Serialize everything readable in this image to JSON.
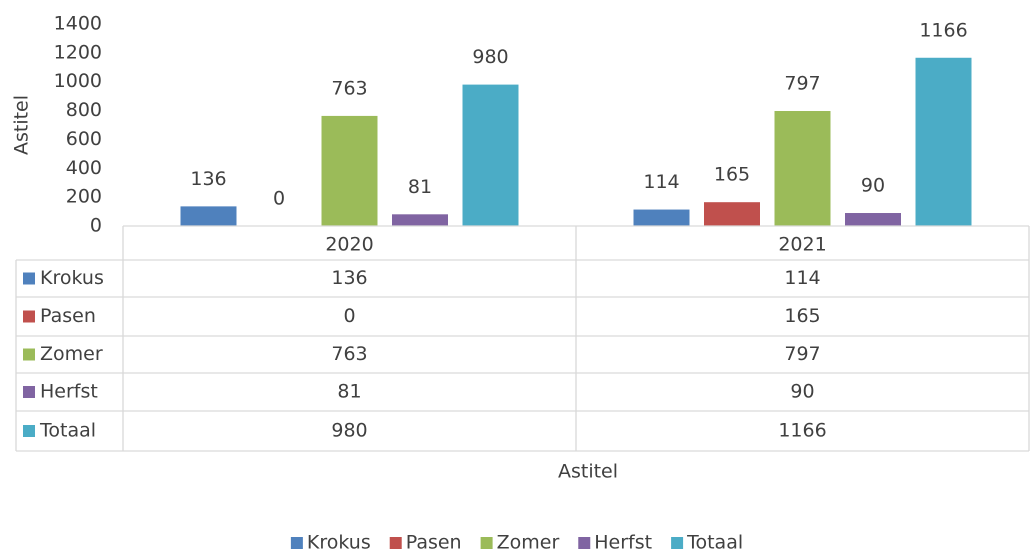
{
  "chart_data": {
    "type": "bar",
    "categories": [
      "2020",
      "2021"
    ],
    "series": [
      {
        "name": "Krokus",
        "color": "#4f81bd",
        "values": [
          136,
          114
        ]
      },
      {
        "name": "Pasen",
        "color": "#c0504d",
        "values": [
          0,
          165
        ]
      },
      {
        "name": "Zomer",
        "color": "#9bbb59",
        "values": [
          763,
          797
        ]
      },
      {
        "name": "Herfst",
        "color": "#8064a2",
        "values": [
          81,
          90
        ]
      },
      {
        "name": "Totaal",
        "color": "#4bacc6",
        "values": [
          980,
          1166
        ]
      }
    ],
    "ylim": [
      0,
      1400
    ],
    "yticks": [
      0,
      200,
      400,
      600,
      800,
      1000,
      1200,
      1400
    ],
    "y_label": "Astitel",
    "x_label": "Astitel",
    "grid": false,
    "data_labels": true,
    "data_table": true,
    "legend": "bottom"
  }
}
